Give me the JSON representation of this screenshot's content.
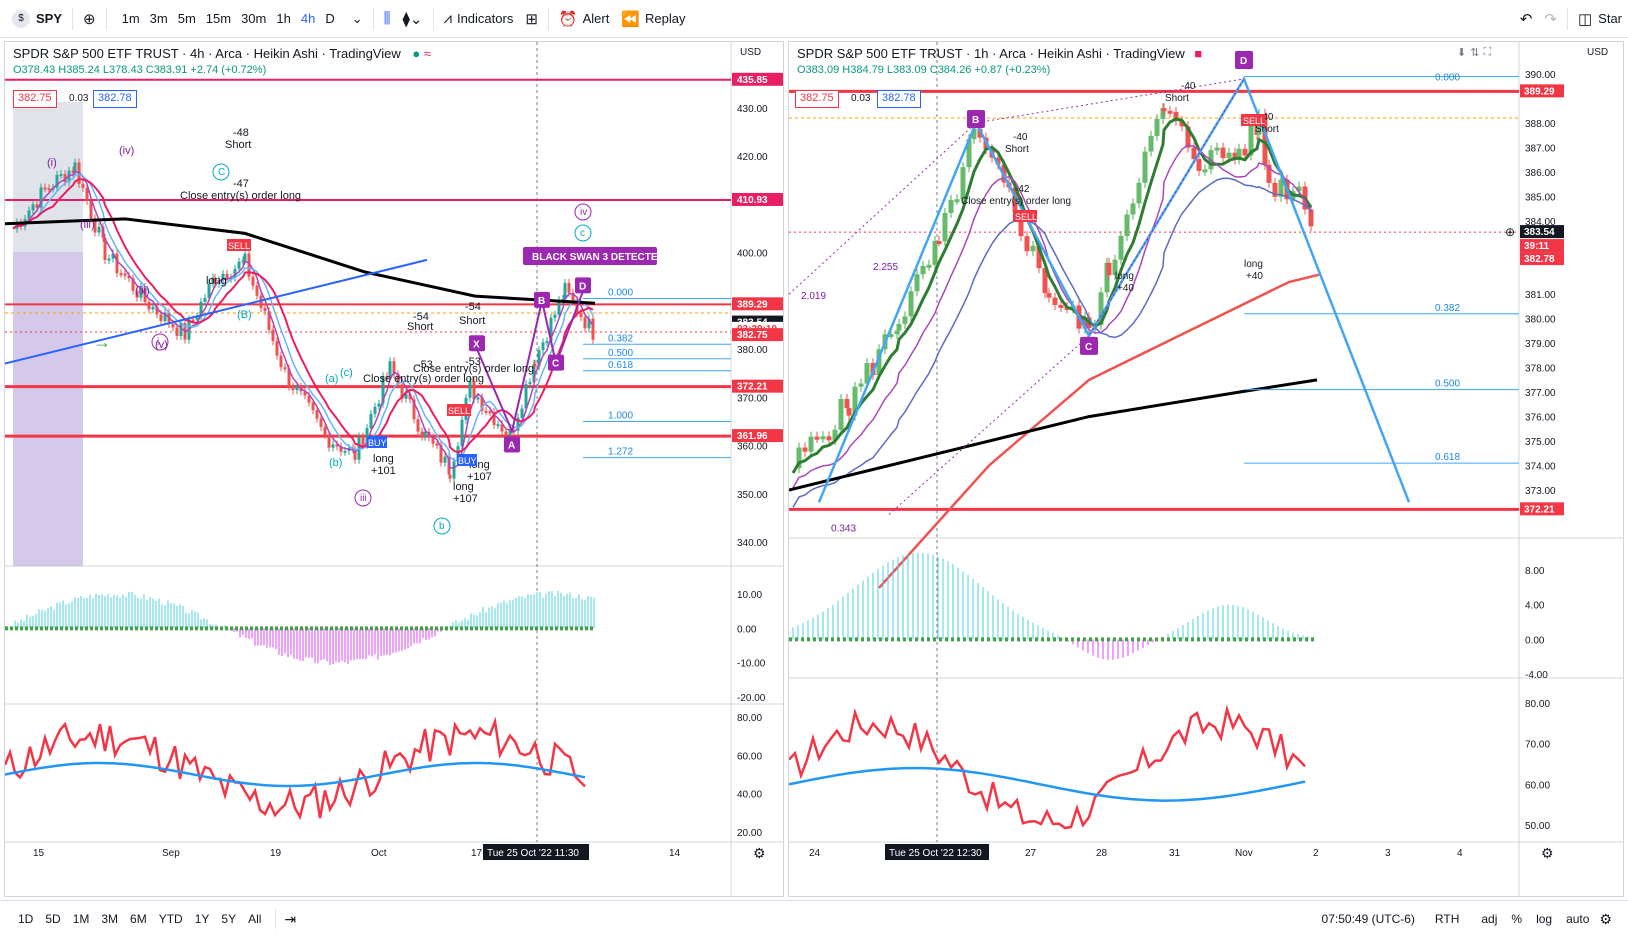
{
  "toolbar": {
    "symbol": "SPY",
    "symbol_icon": "$",
    "timeframes": [
      "1m",
      "3m",
      "5m",
      "15m",
      "30m",
      "1h",
      "4h",
      "D"
    ],
    "active_timeframe": "4h",
    "indicators_label": "Indicators",
    "alert_label": "Alert",
    "replay_label": "Replay",
    "start_label": "Star"
  },
  "left_chart": {
    "title": "SPDR S&P 500 ETF TRUST · 4h · Arca · Heikin Ashi · TradingView",
    "ohlc": {
      "o": "O378.43",
      "h": "H385.24",
      "l": "L378.43",
      "c": "C383.91",
      "chg": "+2.74 (+0.72%)"
    },
    "bid": "382.75",
    "spread": "0.03",
    "ask": "382.78",
    "currency": "USD",
    "price_ticks": [
      "430.00",
      "420.00",
      "400.00",
      "390.00",
      "380.00",
      "370.00",
      "360.00",
      "350.00",
      "340.00"
    ],
    "osc_ticks": [
      "10.00",
      "0.00",
      "-10.00",
      "-20.00"
    ],
    "rsi_ticks": [
      "80.00",
      "60.00",
      "40.00",
      "20.00"
    ],
    "level_tags": [
      {
        "value": "435.85",
        "color": "#e91e63"
      },
      {
        "value": "410.93",
        "color": "#e91e63"
      },
      {
        "value": "389.29",
        "color": "#f23645"
      },
      {
        "value": "383.54",
        "color": "#131722"
      },
      {
        "value": "03:39:10",
        "color": "#f23645"
      },
      {
        "value": "382.75",
        "color": "#f23645"
      },
      {
        "value": "372.21",
        "color": "#f23645"
      },
      {
        "value": "361.96",
        "color": "#f23645"
      }
    ],
    "x_labels": [
      "15",
      "Sep",
      "19",
      "Oct",
      "17",
      "14"
    ],
    "crosshair_date": "Tue 25 Oct '22",
    "crosshair_time": "11:30",
    "fib_levels": [
      "0.000",
      "0.382",
      "0.500",
      "0.618",
      "1.000",
      "1.272"
    ],
    "black_swan": "BLACK SWAN 3 DETECTED",
    "pattern_points": [
      "A",
      "B",
      "C",
      "D",
      "X"
    ],
    "annotations": {
      "short1": "-48",
      "short_label": "Short",
      "short2": "-47",
      "close_entry": "Close entry(s) order long",
      "long_label": "long",
      "long1": "+101",
      "long2": "+107",
      "short3": "-54",
      "short4": "-54",
      "short5": "-53",
      "short6": "-53",
      "buy_label": "BUY",
      "sell_label": "SELL",
      "wave_i": "(i)",
      "wave_iii": "(iii)",
      "wave_iv": "(iv)",
      "wave_v": "(v)",
      "wave_B": "(B)",
      "wave_a": "(a)",
      "wave_b": "(b)",
      "wave_c": "(c)",
      "wave_iv_circ": "iv",
      "wave_c_circ": "c",
      "wave_iii_circ": "iii",
      "wave_b_circ": "b"
    }
  },
  "right_chart": {
    "title": "SPDR S&P 500 ETF TRUST · 1h · Arca · Heikin Ashi · TradingView",
    "ohlc": {
      "o": "O383.09",
      "h": "H384.79",
      "l": "L383.09",
      "c": "C384.26",
      "chg": "+0.87 (+0.23%)"
    },
    "bid": "382.75",
    "spread": "0.03",
    "ask": "382.78",
    "currency": "USD",
    "price_ticks": [
      "390.00",
      "388.00",
      "387.00",
      "386.00",
      "385.00",
      "384.00",
      "381.00",
      "380.00",
      "379.00",
      "378.00",
      "377.00",
      "376.00",
      "375.00",
      "374.00",
      "373.00"
    ],
    "osc_ticks": [
      "8.00",
      "4.00",
      "0.00",
      "-4.00"
    ],
    "rsi_ticks": [
      "80.00",
      "70.00",
      "60.00",
      "50.00"
    ],
    "level_tags": [
      {
        "value": "389.29",
        "color": "#f23645"
      },
      {
        "value": "383.54",
        "color": "#131722"
      },
      {
        "value": "39:11",
        "color": "#f23645"
      },
      {
        "value": "382.78",
        "color": "#f23645"
      },
      {
        "value": "372.21",
        "color": "#f23645"
      }
    ],
    "x_labels": [
      "24",
      "27",
      "28",
      "31",
      "Nov",
      "2",
      "3",
      "4"
    ],
    "crosshair_date": "Tue 25 Oct '22",
    "crosshair_time": "12:30",
    "fib_levels": [
      "0.000",
      "0.382",
      "0.500",
      "0.618"
    ],
    "fib_ext": [
      "2.255",
      "2.019",
      "0.343"
    ],
    "pattern_points": [
      "B",
      "C",
      "D"
    ],
    "annotations": {
      "short1": "-40",
      "short2": "-42",
      "short3": "-40",
      "short4": "-40",
      "short_label": "Short",
      "long_label": "long",
      "long1": "+40",
      "long2": "+40",
      "close_entry": "Close entry(s) order long",
      "sell_label": "SELL"
    }
  },
  "bottom_bar": {
    "ranges": [
      "1D",
      "5D",
      "1M",
      "3M",
      "6M",
      "YTD",
      "1Y",
      "5Y",
      "All"
    ],
    "time": "07:50:49 (UTC-6)",
    "session": "RTH",
    "adj": "adj",
    "percent": "%",
    "log": "log",
    "auto": "auto"
  }
}
